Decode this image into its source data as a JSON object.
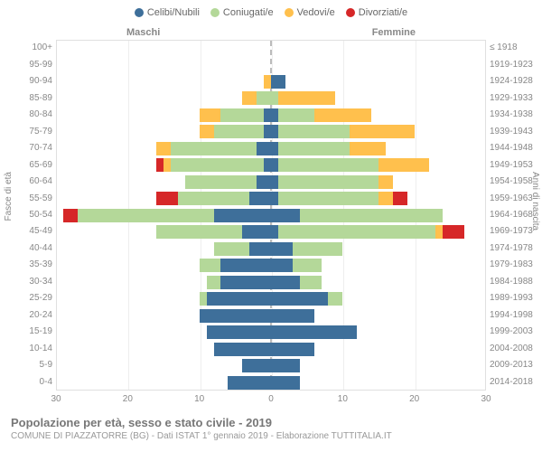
{
  "chart": {
    "type": "population-pyramid",
    "legend": [
      {
        "label": "Celibi/Nubili",
        "color": "#3e6f9a"
      },
      {
        "label": "Coniugati/e",
        "color": "#b4d899"
      },
      {
        "label": "Vedovi/e",
        "color": "#ffc04d"
      },
      {
        "label": "Divorziati/e",
        "color": "#d62728"
      }
    ],
    "gender_left": "Maschi",
    "gender_right": "Femmine",
    "axis_left_title": "Fasce di età",
    "axis_right_title": "Anni di nascita",
    "x_max": 30,
    "xticks": [
      30,
      20,
      10,
      0,
      10,
      20,
      30
    ],
    "grid_color": "#eeeeee",
    "plot_border_color": "#e0e0e0",
    "background_color": "#ffffff",
    "label_fontsize": 10,
    "legend_fontsize": 11,
    "rows": [
      {
        "age": "100+",
        "cohort": "≤ 1918",
        "m": {
          "cel": 0,
          "con": 0,
          "ved": 0,
          "div": 0
        },
        "f": {
          "cel": 0,
          "con": 0,
          "ved": 0,
          "div": 0
        }
      },
      {
        "age": "95-99",
        "cohort": "1919-1923",
        "m": {
          "cel": 0,
          "con": 0,
          "ved": 0,
          "div": 0
        },
        "f": {
          "cel": 0,
          "con": 0,
          "ved": 0,
          "div": 0
        }
      },
      {
        "age": "90-94",
        "cohort": "1924-1928",
        "m": {
          "cel": 0,
          "con": 0,
          "ved": 1,
          "div": 0
        },
        "f": {
          "cel": 2,
          "con": 0,
          "ved": 0,
          "div": 0
        }
      },
      {
        "age": "85-89",
        "cohort": "1929-1933",
        "m": {
          "cel": 0,
          "con": 2,
          "ved": 2,
          "div": 0
        },
        "f": {
          "cel": 0,
          "con": 1,
          "ved": 8,
          "div": 0
        }
      },
      {
        "age": "80-84",
        "cohort": "1934-1938",
        "m": {
          "cel": 1,
          "con": 6,
          "ved": 3,
          "div": 0
        },
        "f": {
          "cel": 1,
          "con": 5,
          "ved": 8,
          "div": 0
        }
      },
      {
        "age": "75-79",
        "cohort": "1939-1943",
        "m": {
          "cel": 1,
          "con": 7,
          "ved": 2,
          "div": 0
        },
        "f": {
          "cel": 1,
          "con": 10,
          "ved": 9,
          "div": 0
        }
      },
      {
        "age": "70-74",
        "cohort": "1944-1948",
        "m": {
          "cel": 2,
          "con": 12,
          "ved": 2,
          "div": 0
        },
        "f": {
          "cel": 1,
          "con": 10,
          "ved": 5,
          "div": 0
        }
      },
      {
        "age": "65-69",
        "cohort": "1949-1953",
        "m": {
          "cel": 1,
          "con": 13,
          "ved": 1,
          "div": 1
        },
        "f": {
          "cel": 1,
          "con": 14,
          "ved": 7,
          "div": 0
        }
      },
      {
        "age": "60-64",
        "cohort": "1954-1958",
        "m": {
          "cel": 2,
          "con": 10,
          "ved": 0,
          "div": 0
        },
        "f": {
          "cel": 1,
          "con": 14,
          "ved": 2,
          "div": 0
        }
      },
      {
        "age": "55-59",
        "cohort": "1959-1963",
        "m": {
          "cel": 3,
          "con": 10,
          "ved": 0,
          "div": 3
        },
        "f": {
          "cel": 1,
          "con": 14,
          "ved": 2,
          "div": 2
        }
      },
      {
        "age": "50-54",
        "cohort": "1964-1968",
        "m": {
          "cel": 8,
          "con": 19,
          "ved": 0,
          "div": 2
        },
        "f": {
          "cel": 4,
          "con": 20,
          "ved": 0,
          "div": 0
        }
      },
      {
        "age": "45-49",
        "cohort": "1969-1973",
        "m": {
          "cel": 4,
          "con": 12,
          "ved": 0,
          "div": 0
        },
        "f": {
          "cel": 1,
          "con": 22,
          "ved": 1,
          "div": 3
        }
      },
      {
        "age": "40-44",
        "cohort": "1974-1978",
        "m": {
          "cel": 3,
          "con": 5,
          "ved": 0,
          "div": 0
        },
        "f": {
          "cel": 3,
          "con": 7,
          "ved": 0,
          "div": 0
        }
      },
      {
        "age": "35-39",
        "cohort": "1979-1983",
        "m": {
          "cel": 7,
          "con": 3,
          "ved": 0,
          "div": 0
        },
        "f": {
          "cel": 3,
          "con": 4,
          "ved": 0,
          "div": 0
        }
      },
      {
        "age": "30-34",
        "cohort": "1984-1988",
        "m": {
          "cel": 7,
          "con": 2,
          "ved": 0,
          "div": 0
        },
        "f": {
          "cel": 4,
          "con": 3,
          "ved": 0,
          "div": 0
        }
      },
      {
        "age": "25-29",
        "cohort": "1989-1993",
        "m": {
          "cel": 9,
          "con": 1,
          "ved": 0,
          "div": 0
        },
        "f": {
          "cel": 8,
          "con": 2,
          "ved": 0,
          "div": 0
        }
      },
      {
        "age": "20-24",
        "cohort": "1994-1998",
        "m": {
          "cel": 10,
          "con": 0,
          "ved": 0,
          "div": 0
        },
        "f": {
          "cel": 6,
          "con": 0,
          "ved": 0,
          "div": 0
        }
      },
      {
        "age": "15-19",
        "cohort": "1999-2003",
        "m": {
          "cel": 9,
          "con": 0,
          "ved": 0,
          "div": 0
        },
        "f": {
          "cel": 12,
          "con": 0,
          "ved": 0,
          "div": 0
        }
      },
      {
        "age": "10-14",
        "cohort": "2004-2008",
        "m": {
          "cel": 8,
          "con": 0,
          "ved": 0,
          "div": 0
        },
        "f": {
          "cel": 6,
          "con": 0,
          "ved": 0,
          "div": 0
        }
      },
      {
        "age": "5-9",
        "cohort": "2009-2013",
        "m": {
          "cel": 4,
          "con": 0,
          "ved": 0,
          "div": 0
        },
        "f": {
          "cel": 4,
          "con": 0,
          "ved": 0,
          "div": 0
        }
      },
      {
        "age": "0-4",
        "cohort": "2014-2018",
        "m": {
          "cel": 6,
          "con": 0,
          "ved": 0,
          "div": 0
        },
        "f": {
          "cel": 4,
          "con": 0,
          "ved": 0,
          "div": 0
        }
      }
    ]
  },
  "footer": {
    "title": "Popolazione per età, sesso e stato civile - 2019",
    "subtitle": "COMUNE DI PIAZZATORRE (BG) - Dati ISTAT 1° gennaio 2019 - Elaborazione TUTTITALIA.IT"
  }
}
